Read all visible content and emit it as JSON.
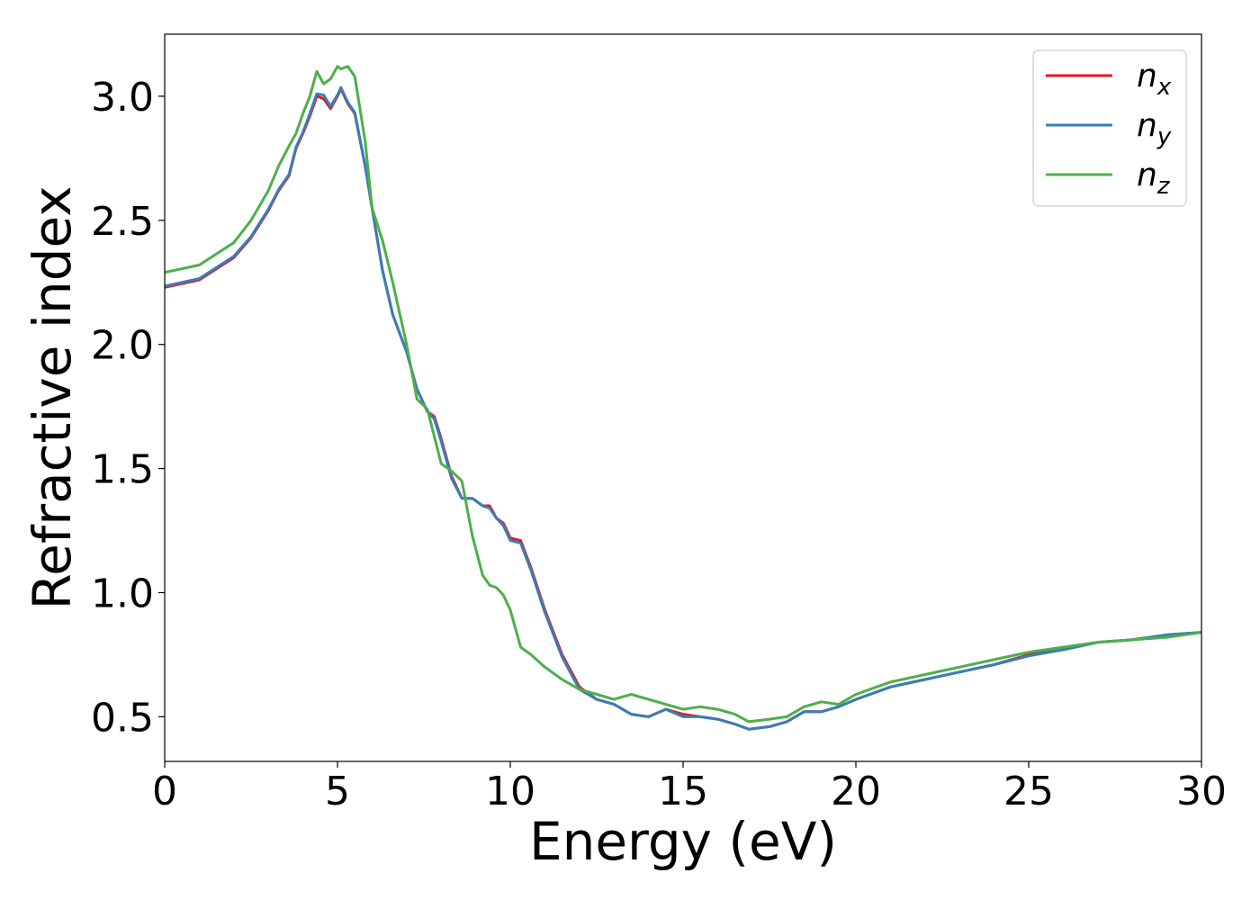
{
  "chart_data": {
    "type": "line",
    "xlabel": "Energy (eV)",
    "ylabel": "Refractive index",
    "xlim": [
      0,
      30
    ],
    "ylim": [
      0.32,
      3.25
    ],
    "xticks": [
      0,
      5,
      10,
      15,
      20,
      25,
      30
    ],
    "xtick_labels": [
      "0",
      "5",
      "10",
      "15",
      "20",
      "25",
      "30"
    ],
    "yticks": [
      0.5,
      1.0,
      1.5,
      2.0,
      2.5,
      3.0
    ],
    "ytick_labels": [
      "0.5",
      "1.0",
      "1.5",
      "2.0",
      "2.5",
      "3.0"
    ],
    "grid": false,
    "legend_position": "top-right",
    "series": [
      {
        "name": "n_x",
        "label_base": "n",
        "label_sub": "x",
        "color": "#e41a1c",
        "x": [
          0,
          1,
          2,
          2.5,
          3,
          3.3,
          3.6,
          3.8,
          4.0,
          4.2,
          4.4,
          4.6,
          4.8,
          5.0,
          5.1,
          5.3,
          5.5,
          5.8,
          6.0,
          6.3,
          6.6,
          7.0,
          7.3,
          7.6,
          7.8,
          8.0,
          8.3,
          8.6,
          8.9,
          9.2,
          9.4,
          9.6,
          9.8,
          10.0,
          10.3,
          10.6,
          11.0,
          11.5,
          12.0,
          12.5,
          13.0,
          13.5,
          14.0,
          14.5,
          15.0,
          15.5,
          16.0,
          16.5,
          16.9,
          17.5,
          18.0,
          18.5,
          19.0,
          19.5,
          20.0,
          21.0,
          22.0,
          23.0,
          24.0,
          25.0,
          26.0,
          27.0,
          28.0,
          29.0,
          30.0
        ],
        "y": [
          2.23,
          2.26,
          2.35,
          2.43,
          2.54,
          2.62,
          2.68,
          2.79,
          2.85,
          2.92,
          3.0,
          2.99,
          2.95,
          3.0,
          3.03,
          2.97,
          2.93,
          2.72,
          2.55,
          2.3,
          2.12,
          1.97,
          1.82,
          1.73,
          1.71,
          1.62,
          1.47,
          1.38,
          1.38,
          1.35,
          1.35,
          1.3,
          1.28,
          1.22,
          1.21,
          1.1,
          0.93,
          0.75,
          0.62,
          0.57,
          0.55,
          0.51,
          0.5,
          0.53,
          0.51,
          0.5,
          0.49,
          0.47,
          0.45,
          0.46,
          0.48,
          0.52,
          0.52,
          0.54,
          0.57,
          0.62,
          0.65,
          0.68,
          0.71,
          0.75,
          0.77,
          0.8,
          0.81,
          0.83,
          0.84
        ]
      },
      {
        "name": "n_y",
        "label_base": "n",
        "label_sub": "y",
        "color": "#377eb8",
        "x": [
          0,
          1,
          2,
          2.5,
          3,
          3.3,
          3.6,
          3.8,
          4.0,
          4.2,
          4.4,
          4.6,
          4.8,
          5.0,
          5.1,
          5.3,
          5.5,
          5.8,
          6.0,
          6.3,
          6.6,
          7.0,
          7.3,
          7.6,
          7.8,
          8.0,
          8.3,
          8.6,
          8.9,
          9.2,
          9.4,
          9.6,
          9.8,
          10.0,
          10.3,
          10.6,
          11.0,
          11.5,
          12.0,
          12.5,
          13.0,
          13.5,
          14.0,
          14.5,
          15.0,
          15.5,
          16.0,
          16.5,
          16.9,
          17.5,
          18.0,
          18.5,
          19.0,
          19.5,
          20.0,
          21.0,
          22.0,
          23.0,
          24.0,
          25.0,
          26.0,
          27.0,
          28.0,
          29.0,
          30.0
        ],
        "y": [
          2.235,
          2.265,
          2.355,
          2.435,
          2.545,
          2.625,
          2.685,
          2.795,
          2.855,
          2.93,
          3.01,
          3.005,
          2.96,
          3.005,
          3.035,
          2.975,
          2.935,
          2.72,
          2.55,
          2.3,
          2.12,
          1.97,
          1.82,
          1.73,
          1.7,
          1.61,
          1.46,
          1.38,
          1.38,
          1.35,
          1.34,
          1.3,
          1.27,
          1.21,
          1.2,
          1.09,
          0.92,
          0.74,
          0.61,
          0.57,
          0.55,
          0.51,
          0.5,
          0.53,
          0.5,
          0.5,
          0.49,
          0.47,
          0.45,
          0.46,
          0.48,
          0.52,
          0.52,
          0.54,
          0.57,
          0.62,
          0.65,
          0.68,
          0.71,
          0.745,
          0.77,
          0.8,
          0.81,
          0.83,
          0.84
        ]
      },
      {
        "name": "n_z",
        "label_base": "n",
        "label_sub": "z",
        "color": "#4daf4a",
        "x": [
          0,
          1,
          2,
          2.5,
          3,
          3.3,
          3.6,
          3.8,
          4.0,
          4.2,
          4.4,
          4.6,
          4.8,
          5.0,
          5.1,
          5.3,
          5.5,
          5.8,
          6.0,
          6.3,
          6.6,
          7.0,
          7.3,
          7.6,
          7.8,
          8.0,
          8.3,
          8.6,
          8.9,
          9.2,
          9.4,
          9.6,
          9.8,
          10.0,
          10.3,
          10.6,
          11.0,
          11.5,
          12.0,
          12.5,
          13.0,
          13.5,
          14.0,
          14.5,
          15.0,
          15.5,
          16.0,
          16.5,
          16.9,
          17.5,
          18.0,
          18.5,
          19.0,
          19.5,
          20.0,
          21.0,
          22.0,
          23.0,
          24.0,
          25.0,
          26.0,
          27.0,
          28.0,
          29.0,
          30.0
        ],
        "y": [
          2.29,
          2.32,
          2.41,
          2.5,
          2.62,
          2.72,
          2.8,
          2.85,
          2.93,
          3.0,
          3.1,
          3.05,
          3.07,
          3.12,
          3.11,
          3.12,
          3.08,
          2.82,
          2.55,
          2.42,
          2.25,
          2.0,
          1.78,
          1.74,
          1.63,
          1.52,
          1.49,
          1.45,
          1.23,
          1.07,
          1.03,
          1.02,
          0.99,
          0.93,
          0.78,
          0.75,
          0.7,
          0.65,
          0.61,
          0.59,
          0.57,
          0.59,
          0.57,
          0.55,
          0.53,
          0.54,
          0.53,
          0.51,
          0.48,
          0.49,
          0.5,
          0.54,
          0.56,
          0.55,
          0.59,
          0.64,
          0.67,
          0.7,
          0.73,
          0.76,
          0.78,
          0.8,
          0.81,
          0.82,
          0.84
        ]
      }
    ]
  }
}
